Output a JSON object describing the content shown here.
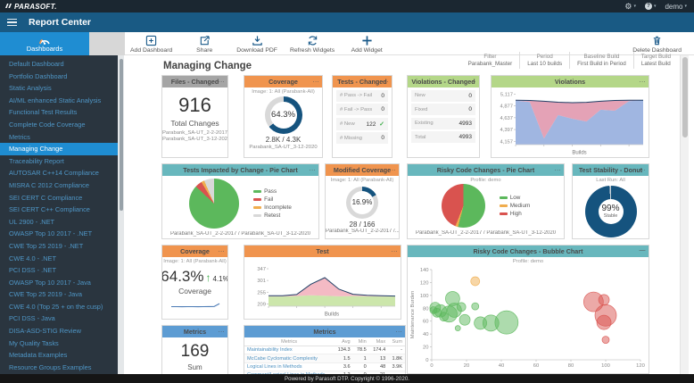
{
  "app": {
    "logo_text": "PARASOFT.",
    "title": "Report Center",
    "user": "demo",
    "help_label": "?"
  },
  "tabs": {
    "dashboards_label": "Dashboards"
  },
  "toolbar": {
    "buttons": [
      {
        "label": "Add Dashboard",
        "icon": "add-dashboard-icon"
      },
      {
        "label": "Share",
        "icon": "share-icon"
      },
      {
        "label": "Download PDF",
        "icon": "download-pdf-icon"
      },
      {
        "label": "Refresh Widgets",
        "icon": "refresh-widgets-icon"
      },
      {
        "label": "Add Widget",
        "icon": "add-widget-icon"
      }
    ],
    "delete_button": {
      "label": "Delete Dashboard",
      "icon": "trash-icon"
    }
  },
  "sidebar": {
    "items": [
      "Default Dashboard",
      "Portfolio Dashboard",
      "Static Analysis",
      "AI/ML enhanced Static Analysis",
      "Functional Test Results",
      "Complete Code Coverage",
      "Metrics",
      "Managing Change",
      "Traceability Report",
      "AUTOSAR C++14 Compliance",
      "MISRA C 2012 Compliance",
      "SEI CERT C Compliance",
      "SEI CERT C++ Compliance",
      "UL 2900 - .NET",
      "OWASP Top 10 2017 - .NET",
      "CWE Top 25 2019 - .NET",
      "CWE 4.0 - .NET",
      "PCI DSS - .NET",
      "OWASP Top 10 2017 - Java",
      "CWE Top 25 2019 - Java",
      "CWE 4.0 (Top 25 + on the cusp)",
      "PCI DSS - Java",
      "DISA-ASD-STIG Review",
      "My Quality Tasks",
      "Metadata Examples",
      "Resource Groups Examples",
      "Misc Examples"
    ],
    "selected": "Managing Change"
  },
  "page": {
    "title": "Managing Change"
  },
  "filter_bar": [
    {
      "label": "Filter",
      "value": "Parabank_Master"
    },
    {
      "label": "Period",
      "value": "Last 10 builds"
    },
    {
      "label": "Baseline Build",
      "value": "First Build in Period"
    },
    {
      "label": "Target Build",
      "value": "Latest Build"
    }
  ],
  "widgets": {
    "files_changed": {
      "title": "Files - Changed",
      "value": "916",
      "caption": "Total Changes",
      "baseline_build": "Parabank_SA-UT_2-2-2017",
      "target_build": "Parabank_SA-UT_3-12-2020"
    },
    "coverage": {
      "title": "Coverage",
      "subtitle": "Image: 1: All (Parabank-All)",
      "percent_label": "64.3%",
      "ratio": "2.8K / 4.3K",
      "build": "Parabank_SA-UT_3-12-2020"
    },
    "tests_changed": {
      "title": "Tests - Changed",
      "rows": [
        {
          "label": "# Pass -> Fail",
          "value": "0",
          "check": false
        },
        {
          "label": "# Fail -> Pass",
          "value": "0",
          "check": false
        },
        {
          "label": "# New",
          "value": "122",
          "check": true
        },
        {
          "label": "# Missing",
          "value": "0",
          "check": false
        }
      ]
    },
    "violations_changed": {
      "title": "Violations - Changed",
      "rows": [
        {
          "label": "New",
          "value": "0",
          "check": false
        },
        {
          "label": "Fixed",
          "value": "0",
          "check": false
        },
        {
          "label": "Existing",
          "value": "4993",
          "check": false
        },
        {
          "label": "Total",
          "value": "4993",
          "check": false
        }
      ]
    },
    "violations": {
      "title": "Violations"
    },
    "tests_impacted": {
      "title": "Tests Impacted by Change - Pie Chart",
      "caption": "Parabank_SA-UT_2-2-2017 / Parabank_SA-UT_3-12-2020"
    },
    "modified_coverage": {
      "title": "Modified Coverage",
      "subtitle": "Image: 1: All (Parabank-All)",
      "percent_label": "16.9%",
      "ratio": "28 / 166",
      "caption": "Parabank_SA-UT_2-2-2017 /..."
    },
    "risky_pie": {
      "title": "Risky Code Changes - Pie Chart",
      "subtitle": "Profile: demo",
      "caption": "Parabank_SA-UT_2-2-2017 / Parabank_SA-UT_3-12-2020"
    },
    "test_stability": {
      "title": "Test Stability - Donut",
      "subtitle": "Last Run: All",
      "percent_label": "99%",
      "status": "Stable"
    },
    "coverage_trend": {
      "title": "Coverage",
      "subtitle": "Image: 1: All (Parabank-All)",
      "percent_label": "64.3%",
      "delta_label": "4.1%",
      "caption": "Coverage"
    },
    "test": {
      "title": "Test"
    },
    "bubble": {
      "title": "Risky Code Changes - Bubble Chart",
      "subtitle": "Profile: demo"
    },
    "metrics_sum": {
      "title": "Metrics",
      "value": "169",
      "caption": "Sum",
      "sub_caption": "Number of Files"
    },
    "metrics_table": {
      "title": "Metrics",
      "columns": [
        "Metrics",
        "Avg",
        "Min",
        "Max",
        "Sum"
      ],
      "rows": [
        {
          "name": "Maintainability Index",
          "avg": "134.3",
          "min": "78.5",
          "max": "174.4",
          "sum": "-"
        },
        {
          "name": "McCabe Cyclomatic Complexity",
          "avg": "1.5",
          "min": "1",
          "max": "13",
          "sum": "1.8K"
        },
        {
          "name": "Logical Lines in Methods",
          "avg": "3.6",
          "min": "0",
          "max": "48",
          "sum": "3.9K"
        },
        {
          "name": "Comment/Logical Lines in Methods",
          "avg": "1.2",
          "min": "0",
          "max": "21",
          "sum": "-"
        }
      ]
    }
  },
  "chart_data": [
    {
      "id": "violations-area",
      "type": "area",
      "title": "Violations",
      "xlabel": "Builds",
      "ylim": [
        4090,
        5160
      ],
      "yticks": [
        5117,
        4877,
        4637,
        4397,
        4157
      ],
      "ytick_labels": [
        "5,117",
        "4,877",
        "4,637",
        "4,397",
        "4,157"
      ],
      "x": [
        1,
        2,
        3,
        4,
        5,
        6,
        7,
        8,
        9,
        10
      ],
      "base": {
        "name": "Existing Violations",
        "color": "#8fa9dc",
        "opacity": 0.85,
        "values": [
          4985,
          4955,
          4215,
          4690,
          4615,
          4560,
          4800,
          4780,
          4975,
          4990
        ]
      },
      "band": {
        "name": "Changed Violations",
        "color": "#dd8ba4",
        "opacity": 0.8
      },
      "line": {
        "name": "Total Violations",
        "color": "#1f3f66",
        "values": [
          4993,
          4988,
          4972,
          4952,
          4942,
          4950,
          4972,
          4988,
          4993,
          4993
        ]
      }
    },
    {
      "id": "test-area",
      "type": "area",
      "title": "Test",
      "xlabel": "Builds",
      "ylim": [
        200,
        375
      ],
      "yticks": [
        347,
        301,
        255,
        209
      ],
      "ytick_labels": [
        "347",
        "301",
        "255",
        "209"
      ],
      "x": [
        1,
        2,
        3,
        4,
        5,
        6,
        7,
        8,
        9,
        10
      ],
      "base": {
        "name": "Pass",
        "color": "#c7e3a2",
        "opacity": 0.9,
        "values": [
          238,
          238,
          240,
          243,
          241,
          239,
          240,
          239,
          238,
          238
        ]
      },
      "band": {
        "name": "Fail / Incomplete",
        "color": "#f3b3be",
        "opacity": 0.9
      },
      "line": {
        "name": "Total Tests",
        "color": "#1f3f66",
        "values": [
          241,
          241,
          246,
          286,
          312,
          267,
          247,
          243,
          241,
          240
        ]
      }
    },
    {
      "id": "coverage-sparkline",
      "type": "line",
      "color": "#4a7ab5",
      "ylim": [
        56,
        68
      ],
      "values": [
        60.2,
        60.2,
        60.1,
        60.2,
        60.2,
        60.1,
        60.2,
        60.3,
        60.4,
        64.3
      ]
    },
    {
      "id": "tests-impacted-pie",
      "type": "pie",
      "legend_position": "right",
      "slices": [
        {
          "label": "Pass",
          "value": 87,
          "color": "#5cb85c"
        },
        {
          "label": "Fail",
          "value": 4.5,
          "color": "#d9534f"
        },
        {
          "label": "Incomplete",
          "value": 2,
          "color": "#f0ad4e"
        },
        {
          "label": "Retest",
          "value": 6.5,
          "color": "#d8d8d8"
        }
      ]
    },
    {
      "id": "risky-pie",
      "type": "pie",
      "legend_position": "right",
      "slices": [
        {
          "label": "Low",
          "value": 54,
          "color": "#5cb85c"
        },
        {
          "label": "Medium",
          "value": 2,
          "color": "#f0ad4e"
        },
        {
          "label": "High",
          "value": 44,
          "color": "#d9534f"
        }
      ]
    },
    {
      "id": "coverage-donut",
      "type": "donut",
      "value": 64.3,
      "color": "#15537e",
      "track": "#d9d9d9"
    },
    {
      "id": "modified-coverage-donut",
      "type": "donut",
      "value": 16.9,
      "color": "#15537e",
      "track": "#d9d9d9"
    },
    {
      "id": "stability-donut",
      "type": "donut",
      "value": 99,
      "color": "#15537e",
      "track": "#c9d2d8"
    },
    {
      "id": "risky-bubble",
      "type": "scatter",
      "ylabel": "Maintenance Burden",
      "xlabel": "",
      "xlim": [
        0,
        120
      ],
      "ylim": [
        0,
        140
      ],
      "xticks": [
        0,
        20,
        40,
        60,
        80,
        100,
        120
      ],
      "yticks": [
        0,
        20,
        40,
        60,
        80,
        100,
        120,
        140
      ],
      "groups": [
        {
          "name": "Low",
          "color": "#5cb85c",
          "points": [
            [
              1,
              77,
              4
            ],
            [
              2,
              81,
              6
            ],
            [
              3,
              73,
              5
            ],
            [
              5,
              76,
              7
            ],
            [
              7,
              67,
              5
            ],
            [
              10,
              71,
              9
            ],
            [
              12,
              95,
              8
            ],
            [
              13,
              77,
              8
            ],
            [
              15,
              49,
              3
            ],
            [
              17,
              82,
              5
            ],
            [
              19,
              62,
              6
            ],
            [
              25,
              83,
              4
            ],
            [
              28,
              57,
              7
            ],
            [
              34,
              57,
              9
            ],
            [
              43,
              58,
              13
            ]
          ]
        },
        {
          "name": "Medium",
          "color": "#f0ad4e",
          "points": [
            [
              25,
              122,
              5
            ]
          ]
        },
        {
          "name": "High",
          "color": "#d9534f",
          "points": [
            [
              93,
              90,
              11
            ],
            [
              99,
              93,
              6
            ],
            [
              100,
              69,
              12
            ],
            [
              99,
              58,
              8
            ],
            [
              100,
              31,
              4
            ]
          ]
        }
      ]
    }
  ],
  "footer": {
    "text": "Powered by Parasoft DTP. Copyright © 1996-2020."
  },
  "colors": {
    "topbar": "#1b2731",
    "appbar": "#195a84",
    "accent_blue": "#1f8dd2",
    "sidebar_bg": "#2a353f",
    "sidebar_link": "#4f96c6",
    "header_gray": "#a5a5a5",
    "header_orange": "#f0944e",
    "header_green": "#b4d788",
    "header_teal": "#68b7bd",
    "header_blue": "#5d9cd3",
    "navy_donut": "#15537e",
    "positive_green": "#3fae4a"
  }
}
